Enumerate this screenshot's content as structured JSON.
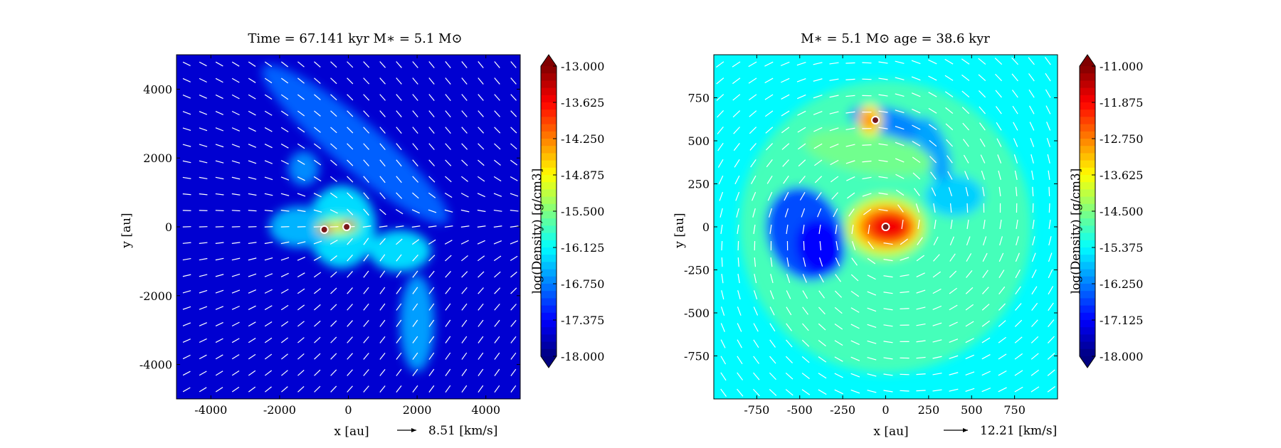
{
  "chart_data": [
    {
      "type": "heatmap",
      "title": "Time = 67.141 kyr    M∗ = 5.1 M⊙",
      "xlabel": "x [au]",
      "ylabel": "y [au]",
      "xlim": [
        -5000,
        5000
      ],
      "ylim": [
        -5000,
        5000
      ],
      "xticks": [
        -4000,
        -2000,
        0,
        2000,
        4000
      ],
      "yticks": [
        -4000,
        -2000,
        0,
        2000,
        4000
      ],
      "colorbar": {
        "label": "log(Density) [g/cm3]",
        "range": [
          -18.0,
          -13.0
        ],
        "ticks": [
          "-13.000",
          "-13.625",
          "-14.250",
          "-14.875",
          "-15.500",
          "-16.125",
          "-16.750",
          "-17.375",
          "-18.000"
        ],
        "colormap": "jet"
      },
      "background_level": -17.6,
      "vector_key": {
        "label": "8.51 [km/s]",
        "value": 8.51
      },
      "stars": [
        {
          "x": -700,
          "y": -80
        },
        {
          "x": -50,
          "y": 0
        }
      ],
      "features": [
        {
          "kind": "ellipse",
          "cx": -200,
          "cy": 0,
          "rx": 1000,
          "ry": 1200,
          "level": -16.3
        },
        {
          "kind": "ellipse",
          "cx": -1400,
          "cy": 0,
          "rx": 900,
          "ry": 600,
          "level": -16.5
        },
        {
          "kind": "ellipse",
          "cx": 200,
          "cy": 2400,
          "rx": 3500,
          "ry": 700,
          "level": -16.9,
          "rotate": -40
        },
        {
          "kind": "ellipse",
          "cx": -1300,
          "cy": 1700,
          "rx": 450,
          "ry": 500,
          "level": -16.7
        },
        {
          "kind": "ellipse",
          "cx": 2000,
          "cy": -2800,
          "rx": 500,
          "ry": 1400,
          "level": -16.6
        },
        {
          "kind": "ellipse",
          "cx": 1500,
          "cy": -700,
          "rx": 900,
          "ry": 600,
          "level": -16.3
        },
        {
          "kind": "ellipse",
          "cx": -300,
          "cy": 0,
          "rx": 700,
          "ry": 350,
          "level": -15.8
        },
        {
          "kind": "ellipse",
          "cx": -250,
          "cy": 0,
          "rx": 400,
          "ry": 150,
          "level": -15.0
        },
        {
          "kind": "ellipse",
          "cx": -650,
          "cy": -60,
          "rx": 250,
          "ry": 130,
          "level": -14.1
        },
        {
          "kind": "ellipse",
          "cx": 0,
          "cy": 50,
          "rx": 230,
          "ry": 110,
          "level": -13.8
        },
        {
          "kind": "ellipse",
          "cx": -650,
          "cy": -60,
          "rx": 110,
          "ry": 70,
          "level": -13.2
        },
        {
          "kind": "ellipse",
          "cx": 0,
          "cy": 40,
          "rx": 90,
          "ry": 60,
          "level": -13.1
        }
      ],
      "stream_fn": "infall_right"
    },
    {
      "type": "heatmap",
      "title": "M∗ = 5.1 M⊙          age = 38.6 kyr",
      "xlabel": "x [au]",
      "ylabel": "y [au]",
      "xlim": [
        -1000,
        1000
      ],
      "ylim": [
        -1000,
        1000
      ],
      "xticks": [
        -750,
        -500,
        -250,
        0,
        250,
        500,
        750
      ],
      "yticks": [
        -750,
        -500,
        -250,
        0,
        250,
        500,
        750
      ],
      "colorbar": {
        "label": "log(Density) [g/cm3]",
        "range": [
          -18.0,
          -11.0
        ],
        "ticks": [
          "-11.000",
          "-11.875",
          "-12.750",
          "-13.625",
          "-14.500",
          "-15.375",
          "-16.250",
          "-17.125",
          "-18.000"
        ],
        "colormap": "jet"
      },
      "background_level": -15.4,
      "vector_key": {
        "label": "12.21 [km/s]",
        "value": 12.21
      },
      "stars": [
        {
          "x": -60,
          "y": 620
        },
        {
          "x": 0,
          "y": 0
        }
      ],
      "features": [
        {
          "kind": "ellipse",
          "cx": 0,
          "cy": 0,
          "rx": 850,
          "ry": 850,
          "level": -14.9
        },
        {
          "kind": "ellipse",
          "cx": -470,
          "cy": -40,
          "rx": 220,
          "ry": 280,
          "level": -16.6,
          "rotate": 20
        },
        {
          "kind": "ellipse",
          "cx": -380,
          "cy": -120,
          "rx": 140,
          "ry": 170,
          "level": -17.1,
          "rotate": 20
        },
        {
          "kind": "ellipse",
          "cx": 400,
          "cy": 180,
          "rx": 170,
          "ry": 120,
          "level": -15.7
        },
        {
          "kind": "ellipse",
          "cx": 20,
          "cy": 600,
          "rx": 240,
          "ry": 90,
          "level": -16.2,
          "rotate": -15
        },
        {
          "kind": "ellipse",
          "cx": 280,
          "cy": 450,
          "rx": 80,
          "ry": 200,
          "level": -16.0,
          "rotate": 20
        },
        {
          "kind": "ellipse",
          "cx": -100,
          "cy": 430,
          "rx": 380,
          "ry": 120,
          "level": -14.6,
          "rotate": -10
        },
        {
          "kind": "ellipse",
          "cx": 0,
          "cy": 0,
          "rx": 240,
          "ry": 190,
          "level": -14.2
        },
        {
          "kind": "ellipse",
          "cx": 0,
          "cy": 0,
          "rx": 200,
          "ry": 140,
          "level": -13.4
        },
        {
          "kind": "ellipse",
          "cx": 10,
          "cy": 0,
          "rx": 160,
          "ry": 110,
          "level": -12.6
        },
        {
          "kind": "ellipse",
          "cx": 20,
          "cy": 0,
          "rx": 110,
          "ry": 75,
          "level": -11.8
        },
        {
          "kind": "ellipse",
          "cx": -90,
          "cy": 620,
          "rx": 70,
          "ry": 90,
          "level": -13.6
        },
        {
          "kind": "ellipse",
          "cx": -100,
          "cy": 620,
          "rx": 40,
          "ry": 60,
          "level": -12.8
        }
      ],
      "stream_fn": "rotation"
    }
  ]
}
